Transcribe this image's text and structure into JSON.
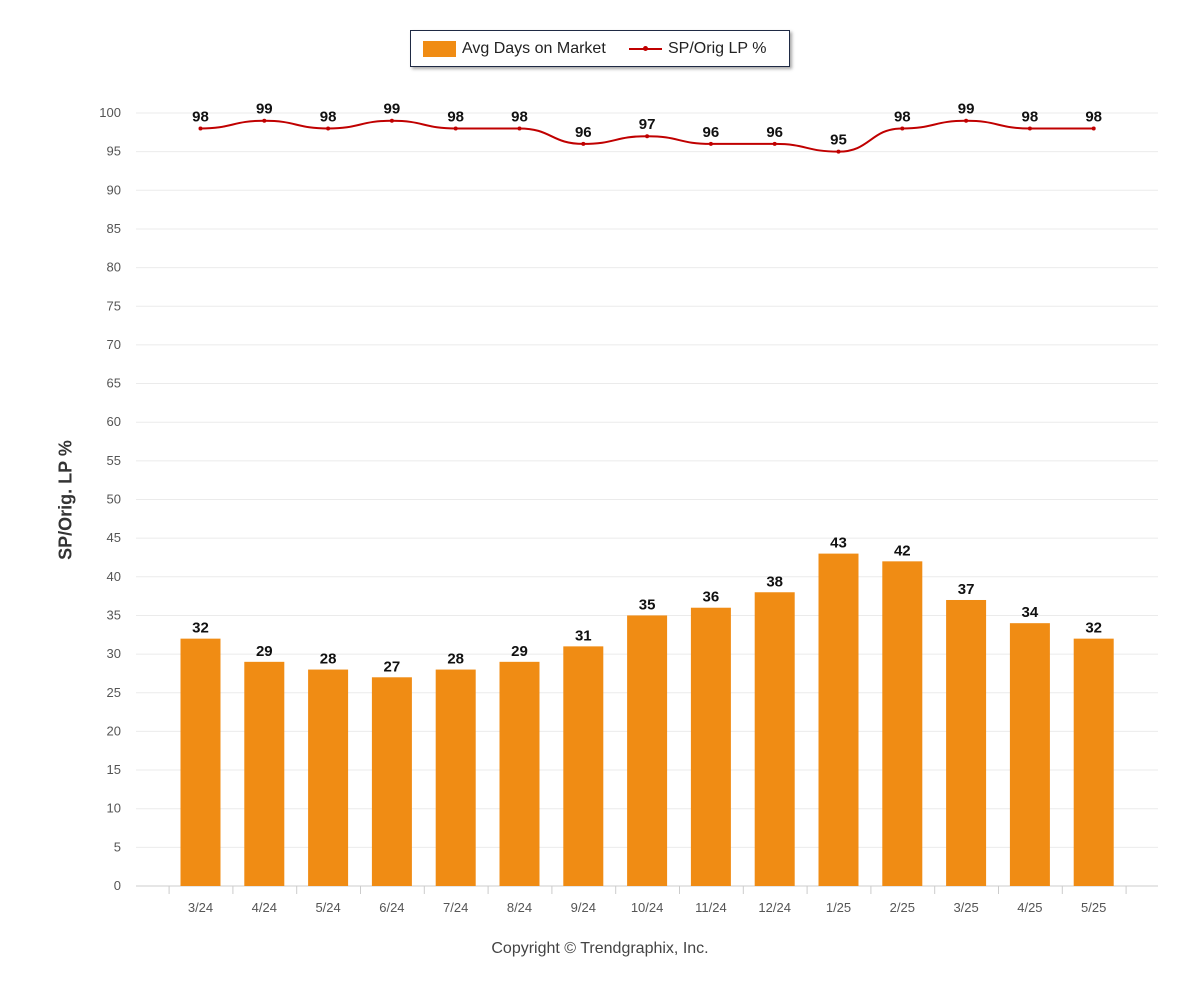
{
  "chart_data": {
    "type": "bar",
    "categories": [
      "3/24",
      "4/24",
      "5/24",
      "6/24",
      "7/24",
      "8/24",
      "9/24",
      "10/24",
      "11/24",
      "12/24",
      "1/25",
      "2/25",
      "3/25",
      "4/25",
      "5/25"
    ],
    "series": [
      {
        "name": "Avg Days on Market",
        "type": "bar",
        "color": "#F08C14",
        "values": [
          32,
          29,
          28,
          27,
          28,
          29,
          31,
          35,
          36,
          38,
          43,
          42,
          37,
          34,
          32
        ]
      },
      {
        "name": "SP/Orig LP %",
        "type": "line",
        "color": "#C00000",
        "values": [
          98,
          99,
          98,
          99,
          98,
          98,
          96,
          97,
          96,
          96,
          95,
          98,
          99,
          98,
          98
        ]
      }
    ],
    "ylabel": "SP/Orig. LP %",
    "ylim": [
      0,
      100
    ],
    "yticks": [
      0,
      5,
      10,
      15,
      20,
      25,
      30,
      35,
      40,
      45,
      50,
      55,
      60,
      65,
      70,
      75,
      80,
      85,
      90,
      95,
      100
    ],
    "grid": true,
    "legend_position": "top-center"
  },
  "copyright": "Copyright © Trendgraphix, Inc."
}
